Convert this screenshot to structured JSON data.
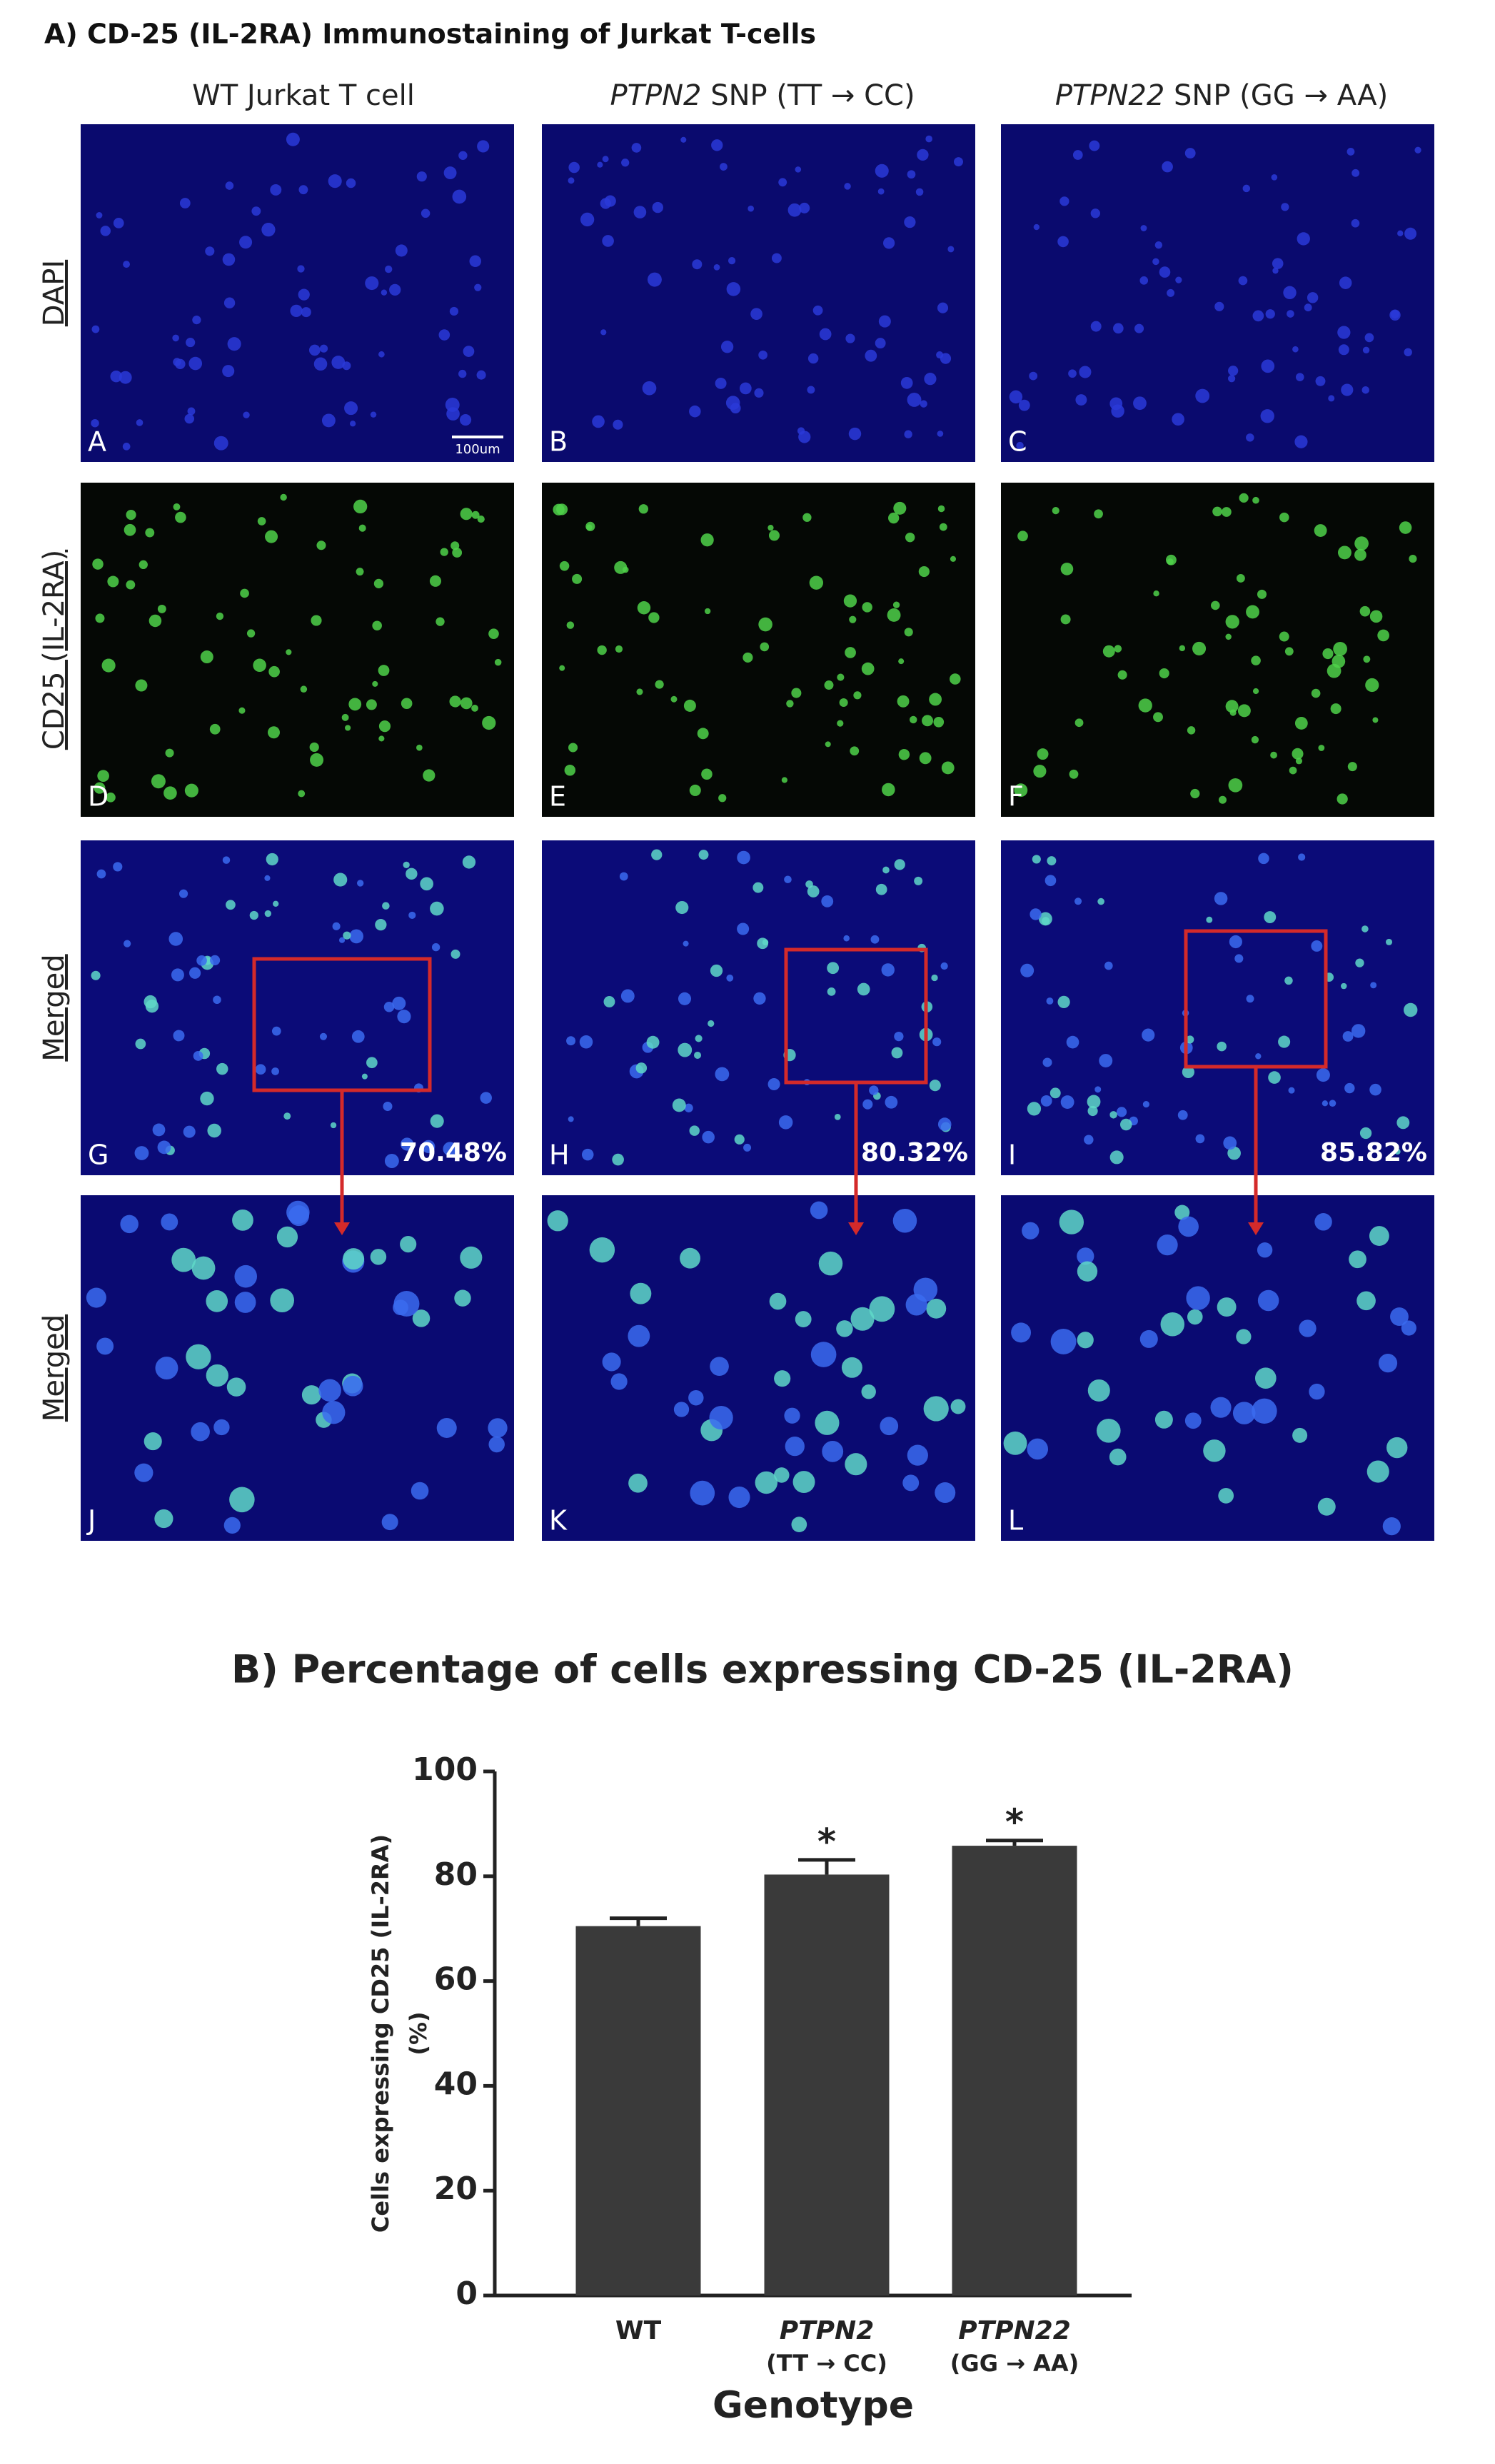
{
  "figure": {
    "title": "A) CD-25 (IL-2RA) Immunostaining of Jurkat T-cells",
    "columns": [
      {
        "gene": null,
        "text": "WT Jurkat T cell"
      },
      {
        "gene": "PTPN2",
        "text": "SNP (TT → CC)"
      },
      {
        "gene": "PTPN22",
        "text": "SNP (GG → AA)"
      }
    ],
    "rows": [
      "DAPI",
      "CD25 (IL-2RA)",
      "Merged",
      "Merged"
    ],
    "panel_letters": [
      [
        "A",
        "B",
        "C"
      ],
      [
        "D",
        "E",
        "F"
      ],
      [
        "G",
        "H",
        "I"
      ],
      [
        "J",
        "K",
        "L"
      ]
    ],
    "scale_bar": "100um",
    "merged_percentages": [
      "70.48%",
      "80.32%",
      "85.82%"
    ]
  },
  "chart_data": {
    "type": "bar",
    "title": "B) Percentage of cells expressing CD-25 (IL-2RA)",
    "categories": [
      "WT",
      "PTPN2",
      "PTPN22"
    ],
    "category_sublabels": [
      null,
      "(TT → CC)",
      "(GG → AA)"
    ],
    "values": [
      70.48,
      80.32,
      85.82
    ],
    "errors": [
      1.5,
      2.8,
      1.0
    ],
    "significance": [
      null,
      "*",
      "*"
    ],
    "color": "#3a3a3a",
    "xlabel": "Genotype",
    "ylabel": [
      "Cells expressing CD25 (IL-2RA)",
      "(%)"
    ],
    "ylim": [
      0,
      100
    ],
    "yticks": [
      0,
      20,
      40,
      60,
      80,
      100
    ]
  }
}
